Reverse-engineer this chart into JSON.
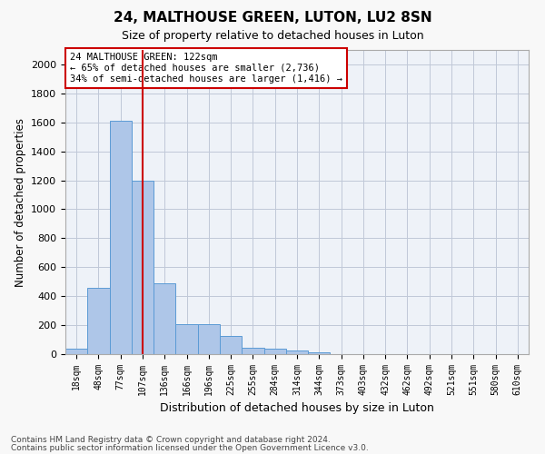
{
  "title": "24, MALTHOUSE GREEN, LUTON, LU2 8SN",
  "subtitle": "Size of property relative to detached houses in Luton",
  "xlabel": "Distribution of detached houses by size in Luton",
  "ylabel": "Number of detached properties",
  "footer_line1": "Contains HM Land Registry data © Crown copyright and database right 2024.",
  "footer_line2": "Contains public sector information licensed under the Open Government Licence v3.0.",
  "bin_labels": [
    "18sqm",
    "48sqm",
    "77sqm",
    "107sqm",
    "136sqm",
    "166sqm",
    "196sqm",
    "225sqm",
    "255sqm",
    "284sqm",
    "314sqm",
    "344sqm",
    "373sqm",
    "403sqm",
    "432sqm",
    "462sqm",
    "492sqm",
    "521sqm",
    "551sqm",
    "580sqm",
    "610sqm"
  ],
  "bar_values": [
    35,
    455,
    1610,
    1200,
    490,
    210,
    210,
    125,
    45,
    40,
    25,
    15,
    0,
    0,
    0,
    0,
    0,
    0,
    0,
    0,
    0
  ],
  "bar_color": "#aec6e8",
  "bar_edge_color": "#5b9bd5",
  "vline_color": "#cc0000",
  "vline_pos": 3.017,
  "ylim": [
    0,
    2100
  ],
  "yticks": [
    0,
    200,
    400,
    600,
    800,
    1000,
    1200,
    1400,
    1600,
    1800,
    2000
  ],
  "annotation_title": "24 MALTHOUSE GREEN: 122sqm",
  "annotation_line1": "← 65% of detached houses are smaller (2,736)",
  "annotation_line2": "34% of semi-detached houses are larger (1,416) →",
  "annotation_box_color": "#cc0000",
  "grid_color": "#c0c8d8",
  "plot_bg_color": "#eef2f8",
  "fig_bg_color": "#f8f8f8"
}
